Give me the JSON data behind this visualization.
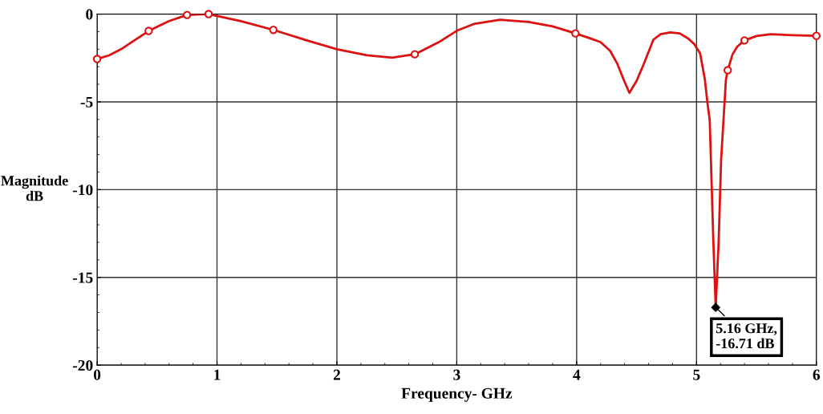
{
  "chart_data": {
    "type": "line",
    "xlabel": "Frequency- GHz",
    "ylabel": "Magnitude\ndB",
    "xlim": [
      0,
      6
    ],
    "ylim": [
      -20,
      0
    ],
    "xticks": [
      0,
      1,
      2,
      3,
      4,
      5,
      6
    ],
    "yticks": [
      -20,
      -15,
      -10,
      -5,
      0
    ],
    "grid": true,
    "legend": false,
    "marker": "none",
    "line_style": "solid",
    "series": [
      {
        "color": "#dd1111",
        "x": [
          0,
          0.1,
          0.2,
          0.3,
          0.43,
          0.6,
          0.75,
          0.93,
          1.2,
          1.47,
          1.75,
          2.0,
          2.25,
          2.46,
          2.65,
          2.85,
          3.0,
          3.15,
          3.36,
          3.6,
          3.8,
          3.99,
          4.1,
          4.2,
          4.28,
          4.34,
          4.39,
          4.44,
          4.5,
          4.56,
          4.64,
          4.7,
          4.78,
          4.86,
          4.93,
          4.98,
          5.03,
          5.07,
          5.09,
          5.11,
          5.12,
          5.14,
          5.16,
          5.185,
          5.205,
          5.225,
          5.245,
          5.26,
          5.3,
          5.34,
          5.4,
          5.5,
          5.62,
          5.8,
          6.0
        ],
        "values": [
          -2.56,
          -2.35,
          -2.0,
          -1.55,
          -0.96,
          -0.4,
          -0.05,
          0,
          -0.4,
          -0.9,
          -1.5,
          -2.0,
          -2.35,
          -2.48,
          -2.29,
          -1.6,
          -0.95,
          -0.55,
          -0.32,
          -0.45,
          -0.7,
          -1.1,
          -1.35,
          -1.6,
          -2.1,
          -2.84,
          -3.7,
          -4.49,
          -3.8,
          -2.84,
          -1.46,
          -1.15,
          -1.04,
          -1.1,
          -1.39,
          -1.7,
          -2.24,
          -3.75,
          -5.0,
          -6.04,
          -8.3,
          -12.9,
          -16.71,
          -12.9,
          -8.3,
          -6.04,
          -3.75,
          -3.2,
          -2.3,
          -1.85,
          -1.5,
          -1.25,
          -1.15,
          -1.2,
          -1.24
        ]
      },
      {
        "type": "scatter",
        "color": "#dd1111",
        "marker": "circle",
        "x": [
          0,
          0.43,
          0.75,
          0.93,
          1.47,
          2.65,
          3.99,
          5.26,
          5.4,
          6.0
        ],
        "values": [
          -2.56,
          -0.96,
          -0.05,
          0,
          -0.9,
          -2.29,
          -1.1,
          -3.2,
          -1.5,
          -1.24
        ]
      }
    ],
    "annotations": [
      {
        "text": "5.16 GHz,\n-16.71 dB",
        "x": 5.16,
        "y": -16.71
      }
    ]
  }
}
